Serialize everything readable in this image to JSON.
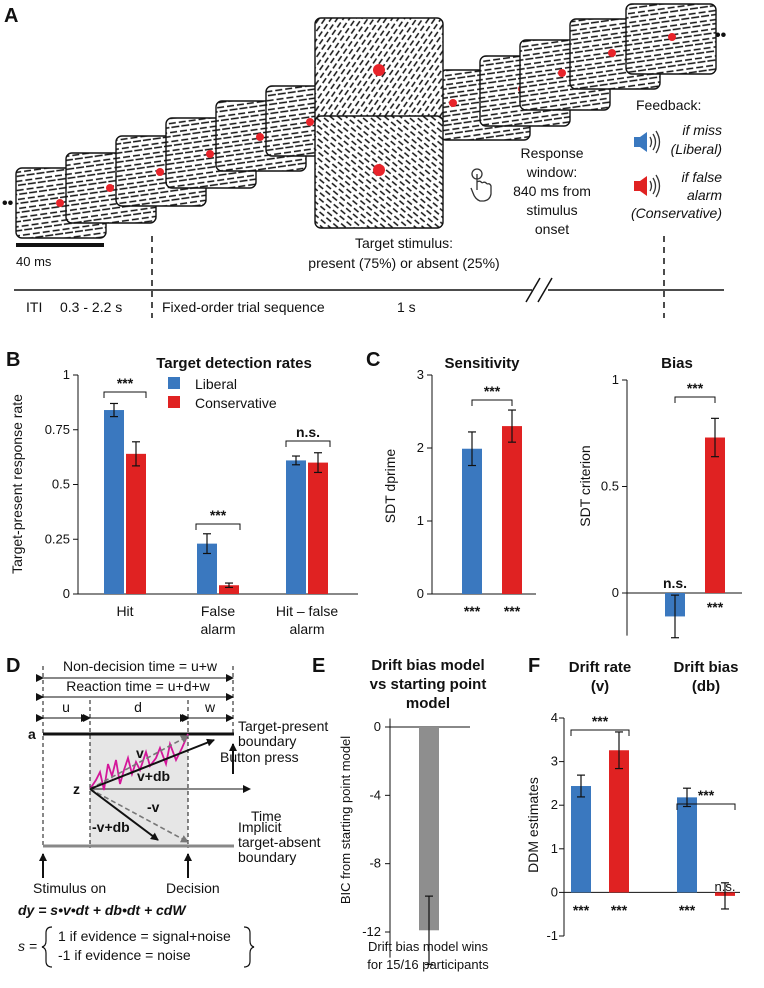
{
  "colors": {
    "liberal": "#3a78bf",
    "conservative": "#e02222",
    "gray": "#8e8e8e",
    "trace": "#d4169a",
    "dot": "#e8232a"
  },
  "panelA": {
    "label": "A",
    "scale_label": "40 ms",
    "target_caption": [
      "Target stimulus:",
      "present (75%) or absent (25%)"
    ],
    "response_caption": [
      "Response",
      "window:",
      "840 ms from",
      "stimulus",
      "onset"
    ],
    "feedback_title": "Feedback:",
    "feedback_miss": [
      "if miss",
      "(Liberal)"
    ],
    "feedback_fa": [
      "if false",
      "alarm",
      "(Conservative)"
    ],
    "timeline": {
      "iti_label": "ITI",
      "iti_range": "0.3 - 2.2 s",
      "sequence_label": "Fixed-order trial sequence",
      "duration_label": "1 s"
    },
    "ellipsis": "••",
    "speaker_icon": "speaker-icon",
    "hand_icon": "hand-pointer-icon"
  },
  "panelB": {
    "label": "B",
    "ylabel": "Target-present response rate",
    "significance": [
      "***",
      "***",
      "n.s."
    ],
    "legend_liberal": "Liberal",
    "legend_conservative": "Conservative"
  },
  "panelC": {
    "label": "C",
    "left_sig_top": "***",
    "left_sig_liberal": "***",
    "left_sig_conservative": "***",
    "right_sig_top": "***",
    "right_sig_liberal": "n.s.",
    "right_sig_conservative": "***"
  },
  "panelD": {
    "label": "D",
    "non_decision": "Non-decision time = u+w",
    "reaction_time": "Reaction time = u+d+w",
    "seg_u": "u",
    "seg_d": "d",
    "seg_w": "w",
    "a_label": "a",
    "z_label": "z",
    "upper_boundary": [
      "Target-present",
      "boundary"
    ],
    "lower_boundary": [
      "Implicit",
      "target-absent",
      "boundary"
    ],
    "button_press": "Button press",
    "time_label": "Time",
    "v": "v",
    "vdb": "v+db",
    "neg_v": "-v",
    "neg_vdb": "-v+db",
    "stimulus_on": "Stimulus on",
    "decision": "Decision",
    "equation": "dy = s•v•dt + db•dt + cdW",
    "s_label": "s =",
    "s_case1": "1 if evidence = signal+noise",
    "s_case2": "-1 if evidence = noise"
  },
  "panelE": {
    "label": "E",
    "footer": [
      "Drift bias model wins",
      "for 15/16 participants"
    ]
  },
  "panelF": {
    "label": "F",
    "sig_v_top": "***",
    "sig_db_top": "***",
    "bottom_sig": [
      "***",
      "***",
      "***",
      "n.s."
    ]
  },
  "chart_data": [
    {
      "id": "B",
      "type": "bar",
      "title": "Target detection rates",
      "ylabel": "Target-present response rate",
      "categories": [
        "Hit",
        "False\nalarm",
        "Hit – false\nalarm"
      ],
      "category_lines": [
        [
          "Hit"
        ],
        [
          "False",
          "alarm"
        ],
        [
          "Hit – false",
          "alarm"
        ]
      ],
      "ylim": [
        0,
        1
      ],
      "yticks": [
        0,
        0.25,
        0.5,
        0.75,
        1
      ],
      "ytick_labels": [
        "0",
        "0.25",
        "0.5",
        "0.75",
        "1"
      ],
      "series": [
        {
          "name": "Liberal",
          "values": [
            0.84,
            0.23,
            0.61
          ],
          "errors": [
            0.03,
            0.045,
            0.02
          ]
        },
        {
          "name": "Conservative",
          "values": [
            0.64,
            0.04,
            0.6
          ],
          "errors": [
            0.055,
            0.01,
            0.045
          ]
        }
      ],
      "legend": "top-right"
    },
    {
      "id": "C-sensitivity",
      "type": "bar",
      "title": "Sensitivity",
      "ylabel": "SDT dprime",
      "ylim": [
        0,
        3
      ],
      "yticks": [
        0,
        1,
        2,
        3
      ],
      "ytick_labels": [
        "0",
        "1",
        "2",
        "3"
      ],
      "series": [
        {
          "name": "Liberal",
          "values": [
            1.99
          ],
          "errors": [
            0.23
          ]
        },
        {
          "name": "Conservative",
          "values": [
            2.3
          ],
          "errors": [
            0.22
          ]
        }
      ]
    },
    {
      "id": "C-bias",
      "type": "bar",
      "title": "Bias",
      "ylabel": "SDT criterion",
      "ylim": [
        -0.2,
        1
      ],
      "yticks": [
        0,
        0.5,
        1
      ],
      "ytick_labels": [
        "0",
        "0.5",
        "1"
      ],
      "series": [
        {
          "name": "Liberal",
          "values": [
            -0.11
          ],
          "errors": [
            0.1
          ]
        },
        {
          "name": "Conservative",
          "values": [
            0.73
          ],
          "errors": [
            0.09
          ]
        }
      ]
    },
    {
      "id": "E",
      "type": "bar",
      "title": "Drift bias model vs starting point model",
      "title_lines": [
        "Drift bias model",
        "vs starting point",
        "model"
      ],
      "ylabel": "BIC from starting point model",
      "ylim": [
        -13.5,
        0.5
      ],
      "yticks": [
        0,
        -4,
        -8,
        -12
      ],
      "ytick_labels": [
        "0",
        "-4",
        "-8",
        "-12"
      ],
      "series": [
        {
          "name": "Drift bias model",
          "values": [
            -11.9
          ],
          "errors": [
            2.0
          ]
        }
      ]
    },
    {
      "id": "F",
      "type": "bar",
      "ylabel": "DDM estimates",
      "group_titles": [
        [
          "Drift rate",
          "(v)"
        ],
        [
          "Drift bias",
          "(db)"
        ]
      ],
      "ylim": [
        -1,
        4
      ],
      "yticks": [
        -1,
        0,
        1,
        2,
        3,
        4
      ],
      "ytick_labels": [
        "-1",
        "0",
        "1",
        "2",
        "3",
        "4"
      ],
      "series": [
        {
          "name": "Liberal",
          "values": [
            2.44,
            2.18
          ],
          "errors": [
            0.25,
            0.21
          ]
        },
        {
          "name": "Conservative",
          "values": [
            3.26,
            -0.08
          ],
          "errors": [
            0.42,
            0.3
          ]
        }
      ]
    }
  ]
}
